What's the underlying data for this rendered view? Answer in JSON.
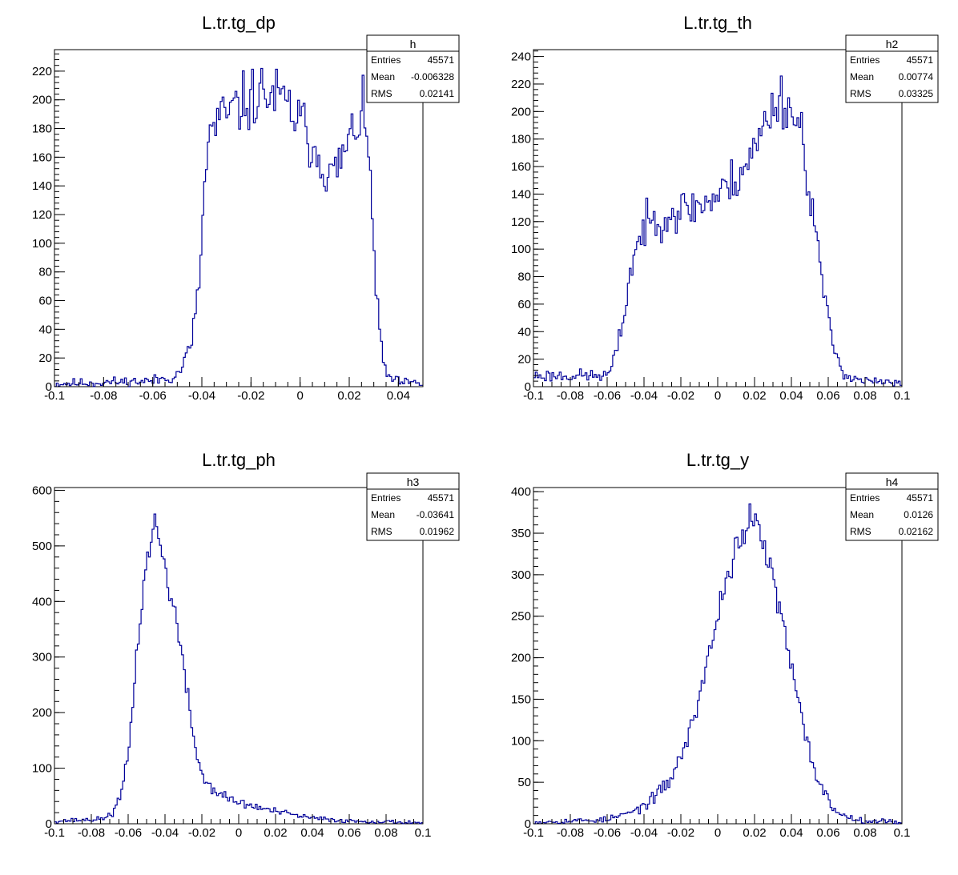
{
  "colors": {
    "histogram": "#000099",
    "frame": "#000000",
    "background": "#ffffff"
  },
  "chart_data": [
    {
      "type": "histogram",
      "title": "L.tr.tg_dp",
      "xlim": [
        -0.1,
        0.05
      ],
      "ylim": [
        0,
        235
      ],
      "xticks": [
        -0.1,
        -0.08,
        -0.06,
        -0.04,
        -0.02,
        0,
        0.02,
        0.04
      ],
      "xtick_labels": [
        "-0.1",
        "-0.08",
        "-0.06",
        "-0.04",
        "-0.02",
        "0",
        "0.02",
        "0.04"
      ],
      "yticks": [
        0,
        20,
        40,
        60,
        80,
        100,
        120,
        140,
        160,
        180,
        200,
        220
      ],
      "ytick_labels": [
        "0",
        "20",
        "40",
        "60",
        "80",
        "100",
        "120",
        "140",
        "160",
        "180",
        "200",
        "220"
      ],
      "stats": {
        "name": "h",
        "entries_label": "Entries",
        "entries": "45571",
        "mean_label": "Mean",
        "mean": "-0.006328",
        "rms_label": "RMS",
        "rms": "0.02141"
      },
      "bin_count": 200,
      "profile": [
        [
          -0.1,
          2
        ],
        [
          -0.06,
          4
        ],
        [
          -0.05,
          8
        ],
        [
          -0.045,
          25
        ],
        [
          -0.042,
          55
        ],
        [
          -0.04,
          100
        ],
        [
          -0.039,
          140
        ],
        [
          -0.037,
          175
        ],
        [
          -0.033,
          185
        ],
        [
          -0.025,
          195
        ],
        [
          -0.015,
          205
        ],
        [
          -0.008,
          200
        ],
        [
          0.0,
          185
        ],
        [
          0.008,
          160
        ],
        [
          0.013,
          145
        ],
        [
          0.02,
          170
        ],
        [
          0.025,
          192
        ],
        [
          0.027,
          178
        ],
        [
          0.029,
          130
        ],
        [
          0.031,
          70
        ],
        [
          0.033,
          25
        ],
        [
          0.035,
          8
        ],
        [
          0.04,
          3
        ],
        [
          0.05,
          2
        ]
      ],
      "noise": 11,
      "seed": 11
    },
    {
      "type": "histogram",
      "title": "L.tr.tg_th",
      "xlim": [
        -0.1,
        0.1
      ],
      "ylim": [
        0,
        245
      ],
      "xticks": [
        -0.1,
        -0.08,
        -0.06,
        -0.04,
        -0.02,
        0,
        0.02,
        0.04,
        0.06,
        0.08,
        0.1
      ],
      "xtick_labels": [
        "-0.1",
        "-0.08",
        "-0.06",
        "-0.04",
        "-0.02",
        "0",
        "0.02",
        "0.04",
        "0.06",
        "0.08",
        "0.1"
      ],
      "yticks": [
        0,
        20,
        40,
        60,
        80,
        100,
        120,
        140,
        160,
        180,
        200,
        220,
        240
      ],
      "ytick_labels": [
        "0",
        "20",
        "40",
        "60",
        "80",
        "100",
        "120",
        "140",
        "160",
        "180",
        "200",
        "220",
        "240"
      ],
      "stats": {
        "name": "h2",
        "entries_label": "Entries",
        "entries": "45571",
        "mean_label": "Mean",
        "mean": "0.00774",
        "rms_label": "RMS",
        "rms": "0.03325"
      },
      "bin_count": 200,
      "profile": [
        [
          -0.1,
          8
        ],
        [
          -0.06,
          8
        ],
        [
          -0.057,
          15
        ],
        [
          -0.054,
          30
        ],
        [
          -0.05,
          60
        ],
        [
          -0.046,
          95
        ],
        [
          -0.04,
          115
        ],
        [
          -0.03,
          125
        ],
        [
          -0.02,
          128
        ],
        [
          -0.01,
          132
        ],
        [
          0.0,
          138
        ],
        [
          0.01,
          152
        ],
        [
          0.02,
          172
        ],
        [
          0.03,
          205
        ],
        [
          0.035,
          210
        ],
        [
          0.04,
          200
        ],
        [
          0.046,
          185
        ],
        [
          0.05,
          140
        ],
        [
          0.055,
          95
        ],
        [
          0.06,
          45
        ],
        [
          0.065,
          20
        ],
        [
          0.07,
          8
        ],
        [
          0.08,
          4
        ],
        [
          0.1,
          2
        ]
      ],
      "noise": 10,
      "seed": 23
    },
    {
      "type": "histogram",
      "title": "L.tr.tg_ph",
      "xlim": [
        -0.1,
        0.1
      ],
      "ylim": [
        0,
        605
      ],
      "xticks": [
        -0.1,
        -0.08,
        -0.06,
        -0.04,
        -0.02,
        0,
        0.02,
        0.04,
        0.06,
        0.08,
        0.1
      ],
      "xtick_labels": [
        "-0.1",
        "-0.08",
        "-0.06",
        "-0.04",
        "-0.02",
        "0",
        "0.02",
        "0.04",
        "0.06",
        "0.08",
        "0.1"
      ],
      "yticks": [
        0,
        100,
        200,
        300,
        400,
        500,
        600
      ],
      "ytick_labels": [
        "0",
        "100",
        "200",
        "300",
        "400",
        "500",
        "600"
      ],
      "stats": {
        "name": "h3",
        "entries_label": "Entries",
        "entries": "45571",
        "mean_label": "Mean",
        "mean": "-0.03641",
        "rms_label": "RMS",
        "rms": "0.01962"
      },
      "bin_count": 200,
      "profile": [
        [
          -0.1,
          5
        ],
        [
          -0.075,
          8
        ],
        [
          -0.068,
          20
        ],
        [
          -0.064,
          50
        ],
        [
          -0.06,
          120
        ],
        [
          -0.056,
          280
        ],
        [
          -0.052,
          420
        ],
        [
          -0.048,
          510
        ],
        [
          -0.045,
          545
        ],
        [
          -0.042,
          490
        ],
        [
          -0.038,
          430
        ],
        [
          -0.034,
          370
        ],
        [
          -0.03,
          280
        ],
        [
          -0.026,
          190
        ],
        [
          -0.022,
          110
        ],
        [
          -0.018,
          75
        ],
        [
          -0.01,
          52
        ],
        [
          0.0,
          38
        ],
        [
          0.02,
          22
        ],
        [
          0.04,
          10
        ],
        [
          0.06,
          5
        ],
        [
          0.1,
          2
        ]
      ],
      "noise": 14,
      "seed": 37
    },
    {
      "type": "histogram",
      "title": "L.tr.tg_y",
      "xlim": [
        -0.1,
        0.1
      ],
      "ylim": [
        0,
        405
      ],
      "xticks": [
        -0.1,
        -0.08,
        -0.06,
        -0.04,
        -0.02,
        0,
        0.02,
        0.04,
        0.06,
        0.08,
        0.1
      ],
      "xtick_labels": [
        "-0.1",
        "-0.08",
        "-0.06",
        "-0.04",
        "-0.02",
        "0",
        "0.02",
        "0.04",
        "0.06",
        "0.08",
        "0.1"
      ],
      "yticks": [
        0,
        50,
        100,
        150,
        200,
        250,
        300,
        350,
        400
      ],
      "ytick_labels": [
        "0",
        "50",
        "100",
        "150",
        "200",
        "250",
        "300",
        "350",
        "400"
      ],
      "stats": {
        "name": "h4",
        "entries_label": "Entries",
        "entries": "45571",
        "mean_label": "Mean",
        "mean": "0.0126",
        "rms_label": "RMS",
        "rms": "0.02162"
      },
      "bin_count": 200,
      "profile": [
        [
          -0.1,
          2
        ],
        [
          -0.06,
          5
        ],
        [
          -0.045,
          15
        ],
        [
          -0.035,
          30
        ],
        [
          -0.025,
          55
        ],
        [
          -0.015,
          110
        ],
        [
          -0.005,
          200
        ],
        [
          0.005,
          300
        ],
        [
          0.012,
          345
        ],
        [
          0.018,
          365
        ],
        [
          0.024,
          345
        ],
        [
          0.03,
          295
        ],
        [
          0.038,
          210
        ],
        [
          0.046,
          120
        ],
        [
          0.054,
          55
        ],
        [
          0.062,
          20
        ],
        [
          0.07,
          8
        ],
        [
          0.08,
          4
        ],
        [
          0.1,
          2
        ]
      ],
      "noise": 11,
      "seed": 53
    }
  ]
}
